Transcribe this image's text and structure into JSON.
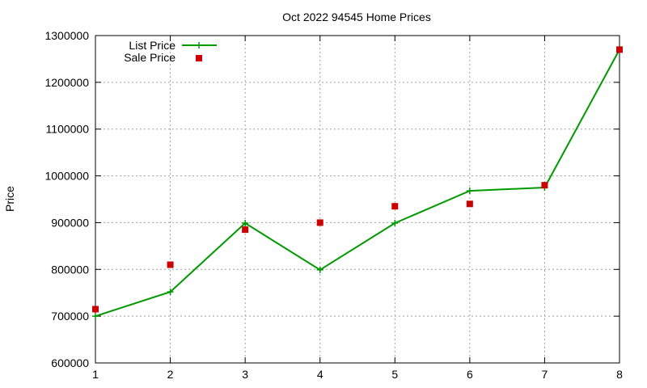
{
  "chart_data": {
    "type": "line",
    "title": "Oct 2022 94545 Home Prices",
    "xlabel": "",
    "ylabel": "Price",
    "x": [
      1,
      2,
      3,
      4,
      5,
      6,
      7,
      8
    ],
    "xlim": [
      1,
      8
    ],
    "ylim": [
      600000,
      1300000
    ],
    "x_ticks": [
      "1",
      "2",
      "3",
      "4",
      "5",
      "6",
      "7",
      "8"
    ],
    "y_ticks": [
      "600000",
      "700000",
      "800000",
      "900000",
      "1000000",
      "1100000",
      "1200000",
      "1300000"
    ],
    "grid": true,
    "legend_position": "top-left",
    "series": [
      {
        "name": "List Price",
        "style": "line-with-plus-markers",
        "color": "#009900",
        "values": [
          700000,
          752000,
          899000,
          799000,
          899000,
          968000,
          975000,
          1270000
        ]
      },
      {
        "name": "Sale Price",
        "style": "square-markers",
        "color": "#cc0000",
        "values": [
          715000,
          810000,
          885000,
          900000,
          935000,
          940000,
          980000,
          1270000
        ]
      }
    ]
  }
}
